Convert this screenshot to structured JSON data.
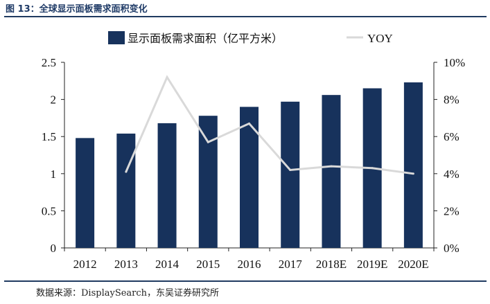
{
  "figure": {
    "title": "图 13：全球显示面板需求面积变化",
    "source": "数据来源：DisplaySearch，东吴证券研究所"
  },
  "chart_data": {
    "type": "bar",
    "categories": [
      "2012",
      "2013",
      "2014",
      "2015",
      "2016",
      "2017",
      "2018E",
      "2019E",
      "2020E"
    ],
    "series": [
      {
        "name": "显示面板需求面积（亿平方米）",
        "type": "bar",
        "axis": "left",
        "color": "#17325c",
        "values": [
          1.48,
          1.54,
          1.68,
          1.78,
          1.9,
          1.97,
          2.06,
          2.15,
          2.23
        ]
      },
      {
        "name": "YOY",
        "type": "line",
        "axis": "right",
        "color": "#d9d9d9",
        "values": [
          null,
          0.041,
          0.092,
          0.057,
          0.067,
          0.042,
          0.044,
          0.043,
          0.04
        ]
      }
    ],
    "y_left": {
      "ylim": [
        0,
        2.5
      ],
      "ticks": [
        0,
        0.5,
        1,
        1.5,
        2,
        2.5
      ],
      "tick_labels": [
        "0",
        "0.5",
        "1",
        "1.5",
        "2",
        "2.5"
      ]
    },
    "y_right": {
      "ylim": [
        0,
        0.1
      ],
      "ticks": [
        0,
        0.02,
        0.04,
        0.06,
        0.08,
        0.1
      ],
      "tick_labels": [
        "0%",
        "2%",
        "4%",
        "6%",
        "8%",
        "10%"
      ]
    },
    "title": "",
    "xlabel": "",
    "ylabel": "",
    "grid": false,
    "legend_position": "top"
  }
}
